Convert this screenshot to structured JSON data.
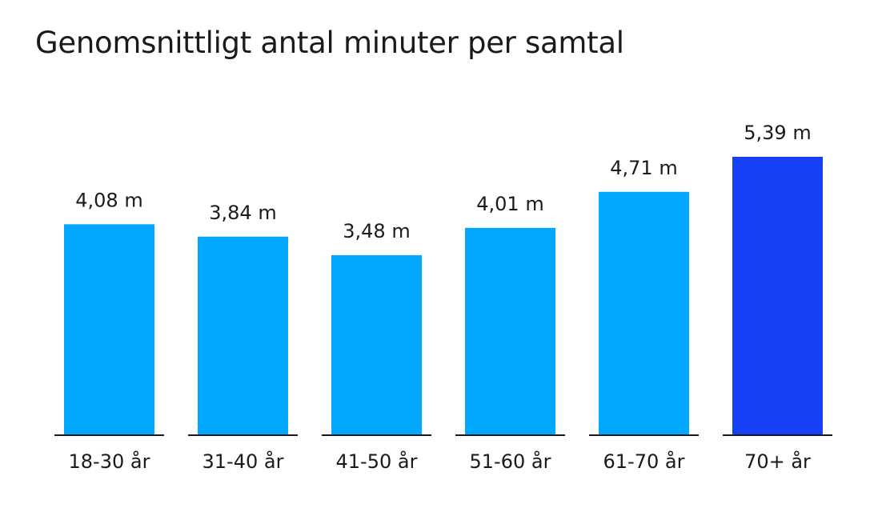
{
  "chart_data": {
    "type": "bar",
    "title": "Genomsnittligt antal minuter per samtal",
    "categories": [
      "18-30 år",
      "31-40 år",
      "41-50 år",
      "51-60 år",
      "61-70 år",
      "70+ år"
    ],
    "values": [
      4.08,
      3.84,
      3.48,
      4.01,
      4.71,
      5.39
    ],
    "data_labels": [
      "4,08 m",
      "3,84 m",
      "3,48 m",
      "4,01 m",
      "4,71 m",
      "5,39 m"
    ],
    "bar_colors": [
      "#00a8ff",
      "#00a8ff",
      "#00a8ff",
      "#00a8ff",
      "#00a8ff",
      "#1540f5"
    ],
    "xlabel": "",
    "ylabel": "",
    "ylim": [
      0,
      5.39
    ],
    "grid": false,
    "legend": "none"
  }
}
